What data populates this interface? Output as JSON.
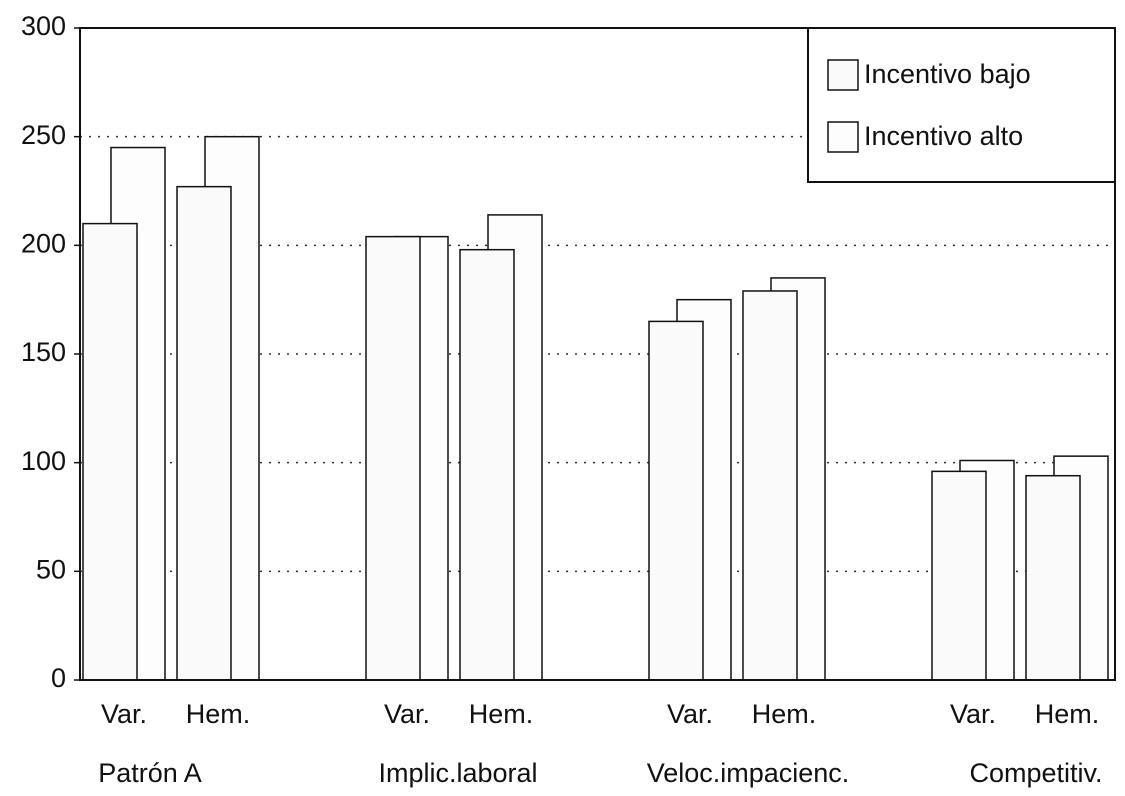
{
  "chart_data": {
    "type": "bar",
    "groups": [
      "Patrón A",
      "Implic.laboral",
      "Veloc.impacienc.",
      "Competitiv."
    ],
    "categories": [
      "Var.",
      "Hem.",
      "Var.",
      "Hem.",
      "Var.",
      "Hem.",
      "Var.",
      "Hem."
    ],
    "series": [
      {
        "name": "Incentivo bajo",
        "color": "#fafafa",
        "values": [
          210,
          227,
          204,
          198,
          165,
          179,
          96,
          94
        ]
      },
      {
        "name": "Incentivo alto",
        "color": "#fdfdfd",
        "values": [
          245,
          250,
          204,
          214,
          175,
          185,
          101,
          103
        ]
      }
    ],
    "ylim": [
      0,
      300
    ],
    "yticks": [
      0,
      50,
      100,
      150,
      200,
      250,
      300
    ],
    "grid": true,
    "legend": "upper right"
  }
}
